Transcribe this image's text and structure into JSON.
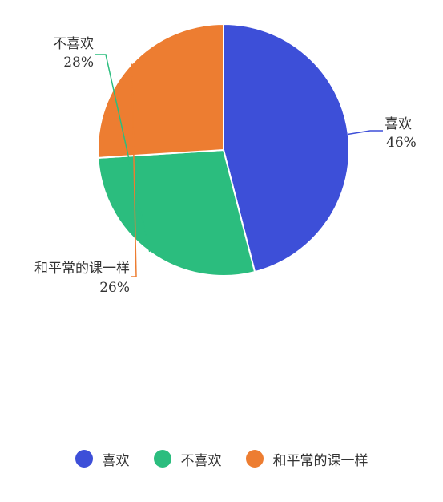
{
  "chart_data": {
    "type": "pie",
    "title": "",
    "legend_position": "bottom",
    "slices": [
      {
        "label": "喜欢",
        "value": 46,
        "percent_label": "46%",
        "color": "#3d4fd8"
      },
      {
        "label": "不喜欢",
        "value": 28,
        "percent_label": "28%",
        "color": "#2bbd7e"
      },
      {
        "label": "和平常的课一样",
        "value": 26,
        "percent_label": "26%",
        "color": "#ed7d31"
      }
    ]
  }
}
